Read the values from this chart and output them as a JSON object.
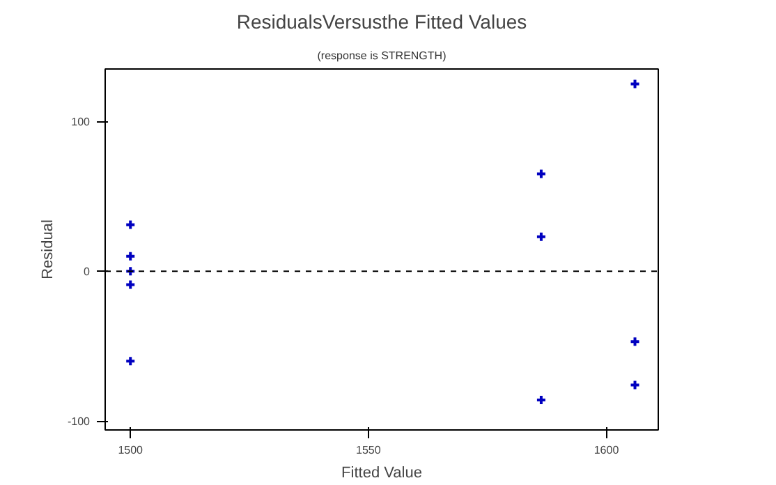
{
  "chart_data": {
    "type": "scatter",
    "title": "ResidualsVersusthe Fitted Values",
    "subtitle": "(response is STRENGTH)",
    "xlabel": "Fitted Value",
    "ylabel": "Residual",
    "x": [
      1500,
      1500,
      1500,
      1500,
      1500,
      1586.3,
      1586.3,
      1586.3,
      1606,
      1606,
      1606
    ],
    "series": [
      {
        "color": "#0000c0",
        "values": [
          31,
          10,
          0,
          -9,
          -60,
          65,
          23,
          -86,
          125,
          -47,
          -76
        ]
      }
    ],
    "xlim": [
      1494.7,
      1610.9
    ],
    "ylim": [
      -106,
      135
    ],
    "xticks": [
      1500,
      1550,
      1600
    ],
    "yticks": [
      -100,
      0,
      100
    ],
    "ref_lines": [
      {
        "axis": "y",
        "value": 0,
        "color": "#000000",
        "line_style": "dashed"
      }
    ],
    "grid": false,
    "marker": "cross"
  }
}
